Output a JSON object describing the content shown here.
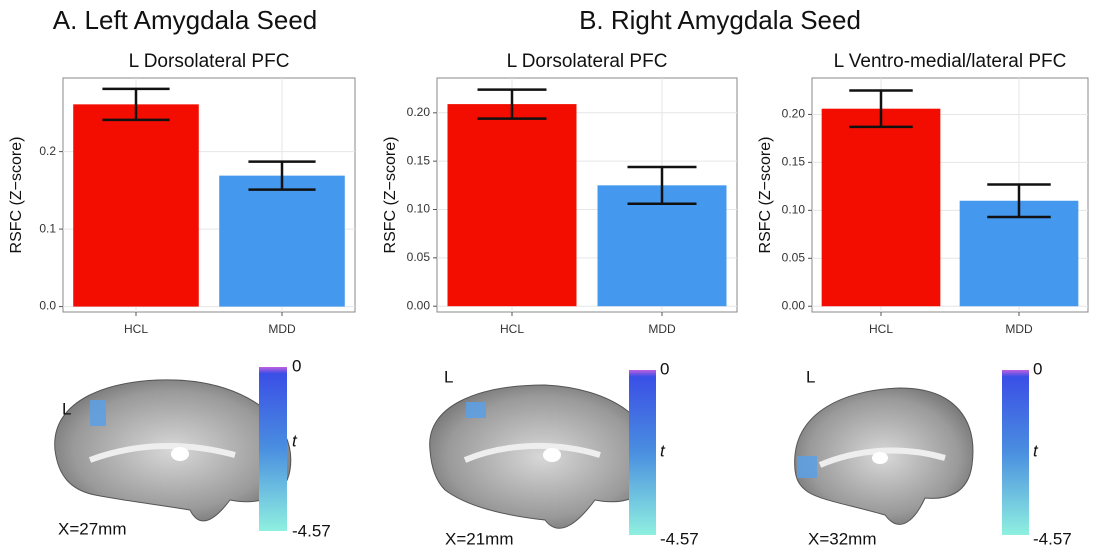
{
  "panels": [
    {
      "heading": "A. Left Amygdala Seed"
    },
    {
      "heading": "B. Right Amygdala Seed"
    }
  ],
  "chart_data": [
    {
      "type": "bar",
      "title": "L Dorsolateral PFC",
      "ylabel": "RSFC (Z−score)",
      "categories": [
        "HCL",
        "MDD"
      ],
      "values": [
        0.261,
        0.169
      ],
      "errors": [
        0.02,
        0.018
      ],
      "colors": [
        "#f20d00",
        "#4499ee"
      ],
      "ylim": [
        -0.007,
        0.295
      ],
      "yticks": [
        {
          "value": 0,
          "label": "0.0"
        },
        0.1,
        0.2
      ],
      "grid": true
    },
    {
      "type": "bar",
      "title": "L Dorsolateral PFC",
      "ylabel": "RSFC (Z−score)",
      "categories": [
        "HCL",
        "MDD"
      ],
      "values": [
        0.209,
        0.125
      ],
      "errors": [
        0.015,
        0.019
      ],
      "colors": [
        "#f20d00",
        "#4499ee"
      ],
      "ylim": [
        -0.006,
        0.236
      ],
      "yticks": [
        {
          "value": 0,
          "label": "0.00"
        },
        0.05,
        {
          "value": 0.1,
          "label": "0.10"
        },
        0.15,
        {
          "value": 0.2,
          "label": "0.20"
        }
      ],
      "grid": true
    },
    {
      "type": "bar",
      "title": "L Ventro-medial/lateral PFC",
      "ylabel": "RSFC (Z−score)",
      "categories": [
        "HCL",
        "MDD"
      ],
      "values": [
        0.206,
        0.11
      ],
      "errors": [
        0.019,
        0.017
      ],
      "colors": [
        "#f20d00",
        "#4499ee"
      ],
      "ylim": [
        -0.006,
        0.238
      ],
      "yticks": [
        {
          "value": 0,
          "label": "0.00"
        },
        0.05,
        {
          "value": 0.1,
          "label": "0.10"
        },
        0.15,
        {
          "value": 0.2,
          "label": "0.20"
        }
      ],
      "grid": true
    }
  ],
  "brain_maps": [
    {
      "hemisphere": "L",
      "slice": "X=27mm",
      "colorbar_top": "0",
      "colorbar_label": "t",
      "colorbar_bottom": "-4.57"
    },
    {
      "hemisphere": "L",
      "slice": "X=21mm",
      "colorbar_top": "0",
      "colorbar_label": "t",
      "colorbar_bottom": "-4.57"
    },
    {
      "hemisphere": "L",
      "slice": "X=32mm",
      "colorbar_top": "0",
      "colorbar_label": "t",
      "colorbar_bottom": "-4.57"
    }
  ]
}
